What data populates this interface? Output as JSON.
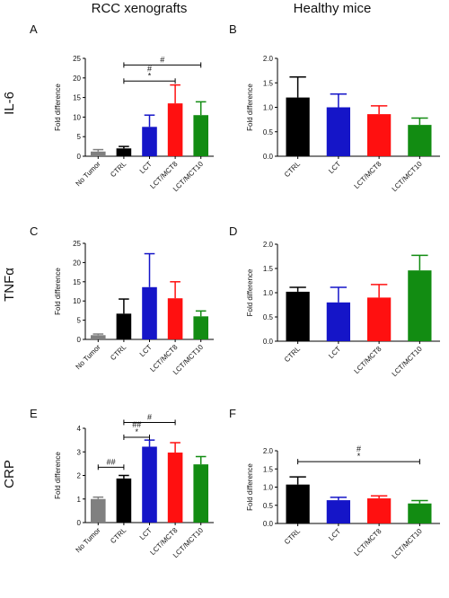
{
  "column_titles": [
    "RCC xenografts",
    "Healthy mice"
  ],
  "row_labels": [
    "IL-6",
    "TNFα",
    "CRP"
  ],
  "chart_data": [
    {
      "panel": "A",
      "type": "bar",
      "ylabel": "Fold difference",
      "ylim": [
        0,
        25
      ],
      "yticks": [
        "0",
        "5",
        "10",
        "15",
        "20",
        "25"
      ],
      "categories": [
        "No Tumor",
        "CTRL",
        "LCT",
        "LCT/MCT8",
        "LCT/MCT10"
      ],
      "values": [
        1.2,
        2.0,
        7.5,
        13.5,
        10.5
      ],
      "errors": [
        0.5,
        0.5,
        3.0,
        4.7,
        3.4
      ],
      "colors": [
        "#808080",
        "#000000",
        "#1515c8",
        "#ff1010",
        "#128c12"
      ],
      "annotations": [
        {
          "from": 1,
          "to": 4,
          "y": 23.3,
          "label": "#"
        },
        {
          "from": 1,
          "to": 3,
          "y": 19.2,
          "label": "#\n*"
        }
      ]
    },
    {
      "panel": "B",
      "type": "bar",
      "ylabel": "Fold difference",
      "ylim": [
        0,
        2.0
      ],
      "yticks": [
        "0.0",
        "0.5",
        "1.0",
        "1.5",
        "2.0"
      ],
      "categories": [
        "CTRL",
        "LCT",
        "LCT/MCT8",
        "LCT/MCT10"
      ],
      "values": [
        1.2,
        1.0,
        0.86,
        0.64
      ],
      "errors": [
        0.42,
        0.27,
        0.17,
        0.14
      ],
      "colors": [
        "#000000",
        "#1515c8",
        "#ff1010",
        "#128c12"
      ],
      "annotations": []
    },
    {
      "panel": "C",
      "type": "bar",
      "ylabel": "Fold difference",
      "ylim": [
        0,
        25
      ],
      "yticks": [
        "0",
        "5",
        "10",
        "15",
        "20",
        "25"
      ],
      "categories": [
        "No Tumor",
        "CTRL",
        "LCT",
        "LCT/MCT8",
        "LCT/MCT10"
      ],
      "values": [
        1.1,
        6.7,
        13.6,
        10.7,
        6.0
      ],
      "errors": [
        0.3,
        3.8,
        8.7,
        4.3,
        1.4
      ],
      "colors": [
        "#808080",
        "#000000",
        "#1515c8",
        "#ff1010",
        "#128c12"
      ],
      "annotations": []
    },
    {
      "panel": "D",
      "type": "bar",
      "ylabel": "Fold difference",
      "ylim": [
        0,
        2.0
      ],
      "yticks": [
        "0.0",
        "0.5",
        "1.0",
        "1.5",
        "2.0"
      ],
      "categories": [
        "CTRL",
        "LCT",
        "LCT/MCT8",
        "LCT/MCT10"
      ],
      "values": [
        1.02,
        0.8,
        0.9,
        1.46
      ],
      "errors": [
        0.09,
        0.31,
        0.27,
        0.31
      ],
      "colors": [
        "#000000",
        "#1515c8",
        "#ff1010",
        "#128c12"
      ],
      "annotations": []
    },
    {
      "panel": "E",
      "type": "bar",
      "ylabel": "Fold difference",
      "ylim": [
        0,
        4
      ],
      "yticks": [
        "0",
        "1",
        "2",
        "3",
        "4"
      ],
      "categories": [
        "No Tumor",
        "CTRL",
        "LCT",
        "LCT/MCT8",
        "LCT/MCT10"
      ],
      "values": [
        1.0,
        1.87,
        3.22,
        2.97,
        2.47
      ],
      "errors": [
        0.08,
        0.13,
        0.28,
        0.42,
        0.33
      ],
      "colors": [
        "#808080",
        "#000000",
        "#1515c8",
        "#ff1010",
        "#128c12"
      ],
      "annotations": [
        {
          "from": 1,
          "to": 3,
          "y": 4.25,
          "label": "#"
        },
        {
          "from": 1,
          "to": 2,
          "y": 3.62,
          "label": "##\n*"
        },
        {
          "from": 0,
          "to": 1,
          "y": 2.35,
          "label": "##"
        }
      ]
    },
    {
      "panel": "F",
      "type": "bar",
      "ylabel": "Fold difference",
      "ylim": [
        0,
        2.0
      ],
      "yticks": [
        "0.0",
        "0.5",
        "1.0",
        "1.5",
        "2.0"
      ],
      "categories": [
        "CTRL",
        "LCT",
        "LCT/MCT8",
        "LCT/MCT10"
      ],
      "values": [
        1.07,
        0.64,
        0.69,
        0.55
      ],
      "errors": [
        0.21,
        0.08,
        0.07,
        0.08
      ],
      "colors": [
        "#000000",
        "#1515c8",
        "#ff1010",
        "#128c12"
      ],
      "annotations": [
        {
          "from": 0,
          "to": 3,
          "y": 1.7,
          "label": "#\n*"
        }
      ]
    }
  ]
}
